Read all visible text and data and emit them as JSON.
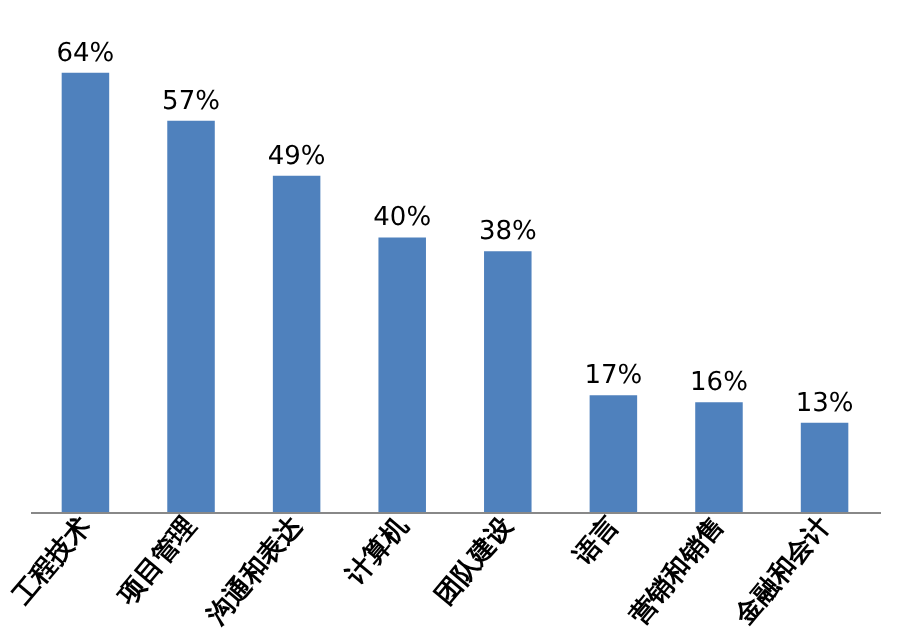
{
  "chart_data": {
    "type": "bar",
    "categories": [
      "工程技术",
      "项目管理",
      "沟通和表达",
      "计算机",
      "团队建设",
      "语言",
      "营销和销售",
      "金融和会计"
    ],
    "values": [
      64,
      57,
      49,
      40,
      38,
      17,
      16,
      13
    ],
    "value_labels": [
      "64%",
      "57%",
      "49%",
      "40%",
      "38%",
      "17%",
      "16%",
      "13%"
    ],
    "color": "#4f81bd",
    "grid": false
  }
}
